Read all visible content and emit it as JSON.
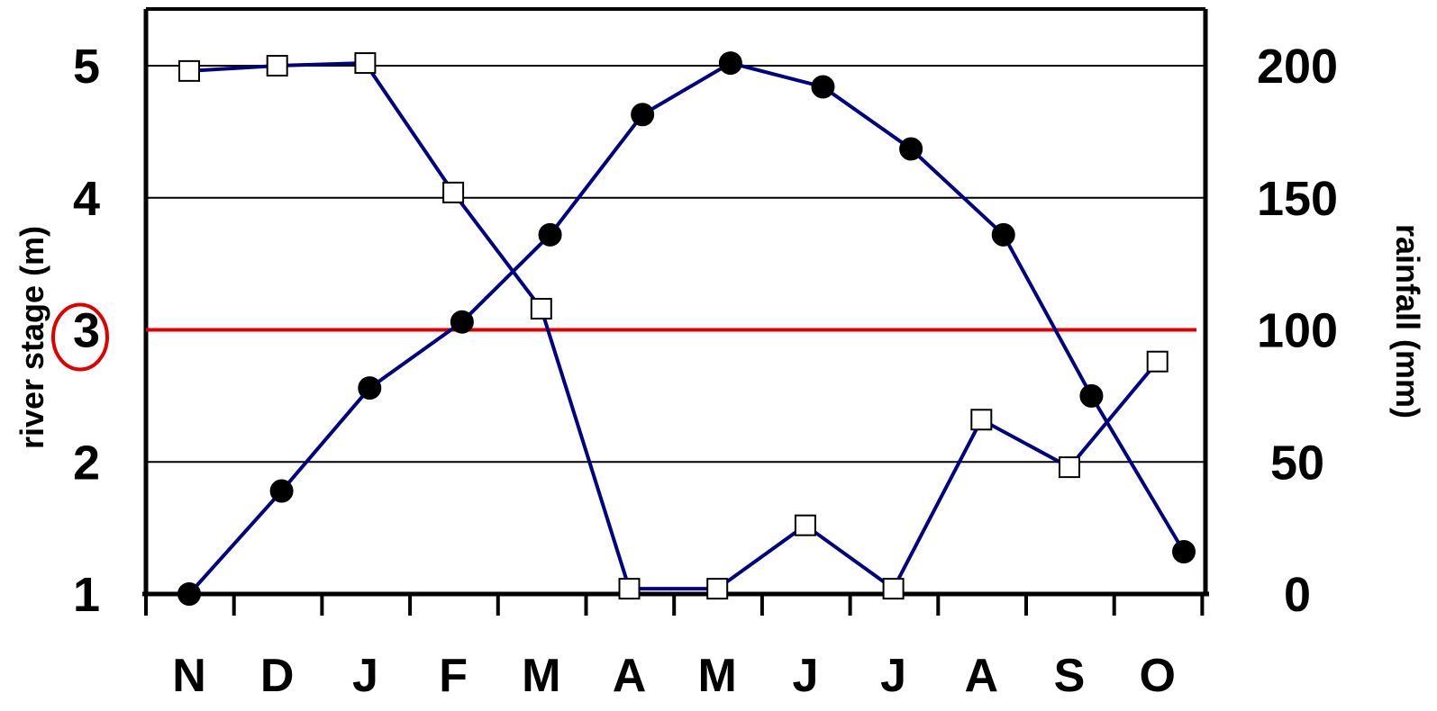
{
  "chart_data": {
    "type": "line",
    "categories": [
      "N",
      "D",
      "J",
      "F",
      "M",
      "A",
      "M",
      "J",
      "J",
      "A",
      "S",
      "O"
    ],
    "y_left": {
      "label": "river stage (m)",
      "ticks": [
        "1",
        "2",
        "3",
        "4",
        "5"
      ],
      "range": [
        1,
        5.4
      ],
      "highlighted_tick": "3",
      "highlight_color": "#e00000"
    },
    "y_right": {
      "label": "rainfall (mm)",
      "ticks": [
        "0",
        "50",
        "100",
        "150",
        "200"
      ],
      "range": [
        0,
        220
      ]
    },
    "series": [
      {
        "axis": "left",
        "marker": "filled-circle",
        "color": "#000080",
        "x": [
          0.0,
          1.05,
          2.05,
          3.1,
          4.1,
          5.15,
          6.15,
          7.2,
          8.2,
          9.25,
          10.25,
          11.3
        ],
        "values": [
          1.0,
          1.78,
          2.56,
          3.06,
          3.72,
          4.63,
          5.02,
          4.84,
          4.37,
          3.72,
          2.5,
          1.32
        ]
      },
      {
        "axis": "right",
        "marker": "open-square",
        "color": "#000080",
        "x": [
          0.0,
          1.0,
          2.0,
          3.0,
          4.0,
          5.0,
          6.0,
          7.0,
          8.0,
          9.0,
          10.0,
          11.0
        ],
        "values": [
          198,
          200,
          201,
          152,
          108,
          2,
          2,
          26,
          2,
          66,
          48,
          88
        ]
      }
    ],
    "reference_line": {
      "axis": "left",
      "value": 3,
      "color": "#e00000"
    },
    "grid": {
      "horizontal": true,
      "values_left": [
        2,
        4,
        5
      ]
    },
    "colors": {
      "series_line": "#000080",
      "reference": "#e00000",
      "frame": "#000000"
    }
  }
}
